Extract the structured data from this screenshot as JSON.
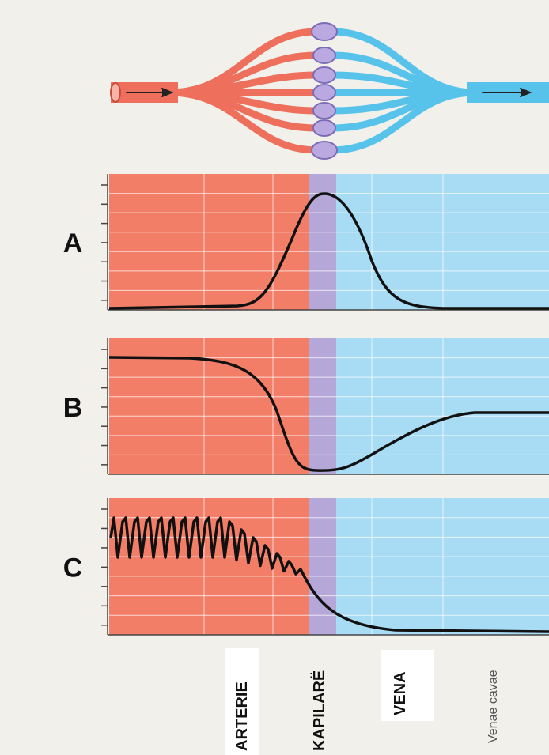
{
  "panels": [
    {
      "label": "A"
    },
    {
      "label": "B"
    },
    {
      "label": "C"
    }
  ],
  "regions": [
    "ARTERIE",
    "KAPILARË",
    "VENA",
    "Venae cavae"
  ]
}
